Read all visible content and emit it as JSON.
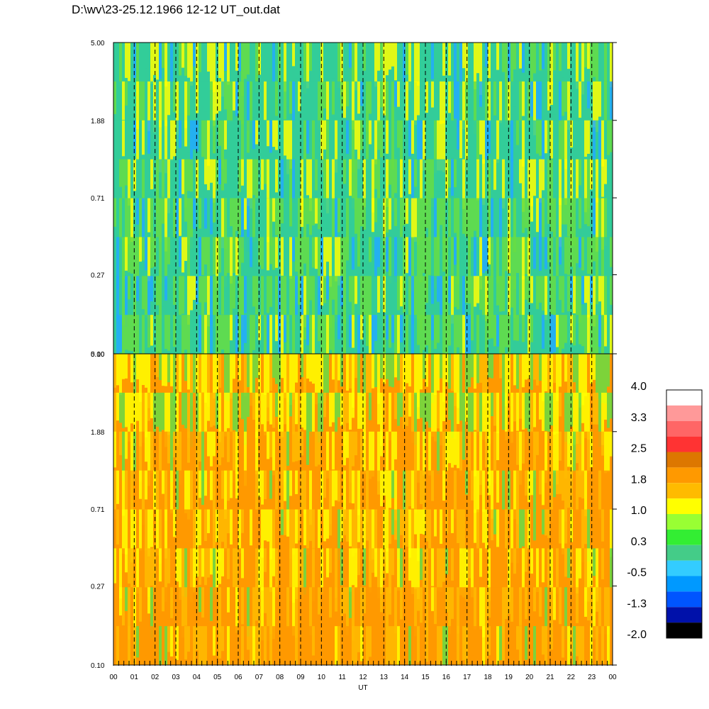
{
  "title": "D:\\wv\\23-25.12.1966  12-12 UT_out.dat",
  "chart_data": [
    {
      "type": "heatmap",
      "panel": "top",
      "y_scale": "log",
      "ylim": [
        0.1,
        5.0
      ],
      "y_ticks": [
        "0.10",
        "0.27",
        "0.71",
        "1.88",
        "5.00"
      ],
      "x_ticks": [
        "00",
        "01",
        "02",
        "03",
        "04",
        "05",
        "06",
        "07",
        "08",
        "09",
        "10",
        "11",
        "12",
        "13",
        "14",
        "15",
        "16",
        "17",
        "18",
        "19",
        "20",
        "21",
        "22",
        "23",
        "00"
      ],
      "dominant_colors": [
        "#33cc99",
        "#66dd44",
        "#ffff00",
        "#22aaff"
      ]
    },
    {
      "type": "heatmap",
      "panel": "bottom",
      "y_scale": "log",
      "ylim": [
        0.1,
        5.0
      ],
      "y_ticks": [
        "0.10",
        "0.27",
        "0.71",
        "1.88",
        "5.00"
      ],
      "x_ticks": [
        "00",
        "01",
        "02",
        "03",
        "04",
        "05",
        "06",
        "07",
        "08",
        "09",
        "10",
        "11",
        "12",
        "13",
        "14",
        "15",
        "16",
        "17",
        "18",
        "19",
        "20",
        "21",
        "22",
        "23",
        "00"
      ],
      "xlabel": "UT",
      "dominant_colors": [
        "#ff9900",
        "#ffbb00",
        "#ffff00",
        "#66dd44"
      ]
    }
  ],
  "colorbar": {
    "labels": [
      "4.0",
      "3.3",
      "2.5",
      "1.8",
      "1.0",
      "0.3",
      "-0.5",
      "-1.3",
      "-2.0"
    ],
    "colors": [
      "#ffffff",
      "#ff9999",
      "#ff6666",
      "#ff3333",
      "#dd7700",
      "#ff9900",
      "#ffbb00",
      "#ffff00",
      "#99ff33",
      "#33ee33",
      "#44cc88",
      "#33ccff",
      "#0099ff",
      "#0055ff",
      "#0011aa",
      "#000000"
    ]
  }
}
